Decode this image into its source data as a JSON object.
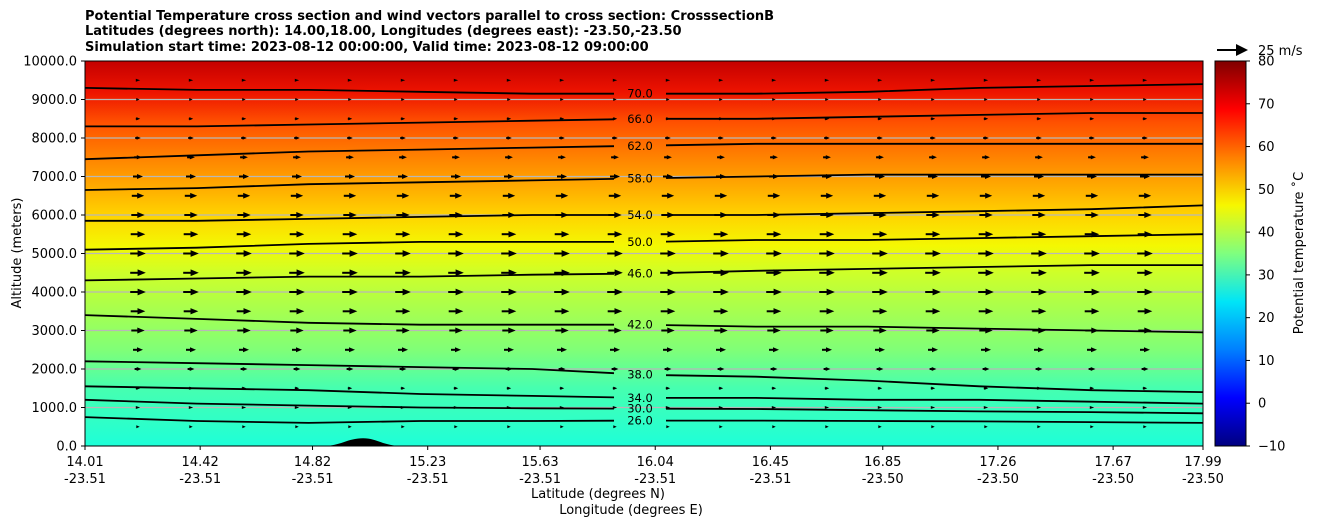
{
  "chart_data": {
    "type": "contourf",
    "title_lines": [
      "Potential Temperature cross section and wind vectors parallel to cross section: CrosssectionB",
      "Latitudes (degrees north): 14.00,18.00, Longitudes (degrees east): -23.50,-23.50",
      "Simulation start time: 2023-08-12 00:00:00, Valid time: 2023-08-12 09:00:00"
    ],
    "ylabel": "Altitude (meters)",
    "xlabel_lines": [
      "Latitude (degrees N)",
      "Longitude (degrees E)"
    ],
    "ylim": [
      0,
      10000
    ],
    "yticks": [
      "0.0",
      "1000.0",
      "2000.0",
      "3000.0",
      "4000.0",
      "5000.0",
      "6000.0",
      "7000.0",
      "8000.0",
      "9000.0",
      "10000.0"
    ],
    "xticks": [
      {
        "lat": "14.01",
        "lon": "-23.51"
      },
      {
        "lat": "14.42",
        "lon": "-23.51"
      },
      {
        "lat": "14.82",
        "lon": "-23.51"
      },
      {
        "lat": "15.23",
        "lon": "-23.51"
      },
      {
        "lat": "15.63",
        "lon": "-23.51"
      },
      {
        "lat": "16.04",
        "lon": "-23.51"
      },
      {
        "lat": "16.45",
        "lon": "-23.51"
      },
      {
        "lat": "16.85",
        "lon": "-23.50"
      },
      {
        "lat": "17.26",
        "lon": "-23.50"
      },
      {
        "lat": "17.67",
        "lon": "-23.50"
      },
      {
        "lat": "17.99",
        "lon": "-23.50"
      }
    ],
    "grid": true,
    "colorbar": {
      "label": "Potential temperature ˚C",
      "range": [
        -10,
        80
      ],
      "ticks": [
        "−10",
        "0",
        "10",
        "20",
        "30",
        "40",
        "50",
        "60",
        "70",
        "80"
      ],
      "colormap": "jet"
    },
    "quiver_key": {
      "label": "25 m/s",
      "reference_speed": 25
    },
    "contour_lines": [
      {
        "level": "26.0",
        "heights": [
          750,
          650,
          600,
          650,
          650,
          660,
          660,
          650,
          640,
          620,
          600
        ]
      },
      {
        "level": "30.0",
        "heights": [
          1200,
          1100,
          1050,
          1000,
          980,
          970,
          960,
          930,
          900,
          880,
          850
        ]
      },
      {
        "level": "34.0",
        "heights": [
          1550,
          1500,
          1450,
          1350,
          1300,
          1250,
          1250,
          1200,
          1200,
          1150,
          1100
        ]
      },
      {
        "level": "38.0",
        "heights": [
          2200,
          2150,
          2100,
          2050,
          2000,
          1850,
          1800,
          1700,
          1550,
          1450,
          1400
        ]
      },
      {
        "level": "42.0",
        "heights": [
          3400,
          3300,
          3200,
          3150,
          3150,
          3150,
          3100,
          3100,
          3050,
          3000,
          2950
        ]
      },
      {
        "level": "46.0",
        "heights": [
          4300,
          4350,
          4400,
          4400,
          4450,
          4480,
          4550,
          4600,
          4650,
          4700,
          4700
        ]
      },
      {
        "level": "50.0",
        "heights": [
          5100,
          5150,
          5250,
          5300,
          5300,
          5300,
          5350,
          5350,
          5400,
          5450,
          5500
        ]
      },
      {
        "level": "54.0",
        "heights": [
          5850,
          5850,
          5900,
          5950,
          6000,
          6000,
          6000,
          6050,
          6100,
          6150,
          6250
        ]
      },
      {
        "level": "58.0",
        "heights": [
          6650,
          6700,
          6800,
          6850,
          6900,
          6950,
          7000,
          7050,
          7050,
          7050,
          7050
        ]
      },
      {
        "level": "62.0",
        "heights": [
          7450,
          7550,
          7650,
          7700,
          7750,
          7800,
          7850,
          7850,
          7850,
          7850,
          7850
        ]
      },
      {
        "level": "66.0",
        "heights": [
          8300,
          8300,
          8350,
          8400,
          8450,
          8500,
          8500,
          8550,
          8600,
          8650,
          8650
        ]
      },
      {
        "level": "70.0",
        "heights": [
          9300,
          9250,
          9250,
          9200,
          9150,
          9150,
          9150,
          9200,
          9300,
          9350,
          9400
        ]
      }
    ],
    "wind_rows": [
      {
        "z": 500,
        "speed": 1.5
      },
      {
        "z": 1000,
        "speed": 2
      },
      {
        "z": 1500,
        "speed": 4
      },
      {
        "z": 2000,
        "speed": 6
      },
      {
        "z": 2500,
        "speed": 9
      },
      {
        "z": 3000,
        "speed": 12
      },
      {
        "z": 3500,
        "speed": 13
      },
      {
        "z": 4000,
        "speed": 14
      },
      {
        "z": 4500,
        "speed": 14
      },
      {
        "z": 5000,
        "speed": 14
      },
      {
        "z": 5500,
        "speed": 13
      },
      {
        "z": 6000,
        "speed": 12
      },
      {
        "z": 6500,
        "speed": 11
      },
      {
        "z": 7000,
        "speed": 9
      },
      {
        "z": 7500,
        "speed": 7
      },
      {
        "z": 8000,
        "speed": 5
      },
      {
        "z": 8500,
        "speed": 4
      },
      {
        "z": 9000,
        "speed": 3
      },
      {
        "z": 9500,
        "speed": 2
      }
    ],
    "terrain": {
      "lat": 15.0,
      "peak_height": 200
    }
  }
}
